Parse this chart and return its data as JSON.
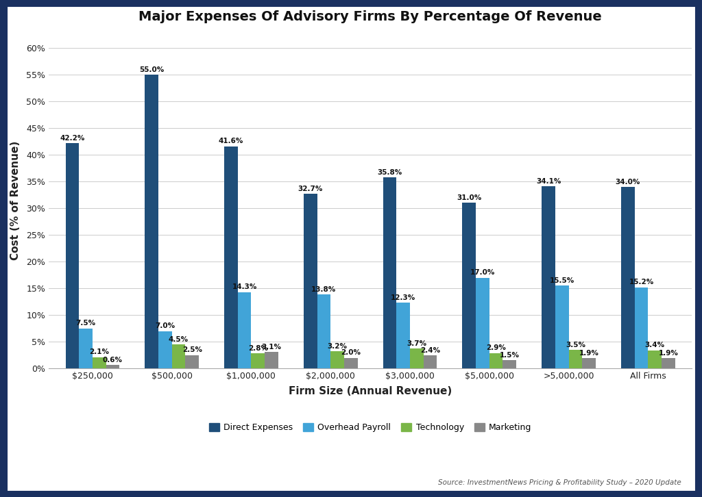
{
  "title": "Major Expenses Of Advisory Firms By Percentage Of Revenue",
  "xlabel": "Firm Size (Annual Revenue)",
  "ylabel": "Cost (% of Revenue)",
  "source": "Source: InvestmentNews Pricing & Profitability Study – 2020 Update",
  "categories": [
    "$250,000",
    "$500,000",
    "$1,000,000",
    "$2,000,000",
    "$3,000,000",
    "$5,000,000",
    ">5,000,000",
    "All Firms"
  ],
  "series": {
    "Direct Expenses": [
      42.2,
      55.0,
      41.6,
      32.7,
      35.8,
      31.0,
      34.1,
      34.0
    ],
    "Overhead Payroll": [
      7.5,
      7.0,
      14.3,
      13.8,
      12.3,
      17.0,
      15.5,
      15.2
    ],
    "Technology": [
      2.1,
      4.5,
      2.8,
      3.2,
      3.7,
      2.9,
      3.5,
      3.4
    ],
    "Marketing": [
      0.6,
      2.5,
      3.1,
      2.0,
      2.4,
      1.5,
      1.9,
      1.9
    ]
  },
  "colors": {
    "Direct Expenses": "#1f4e79",
    "Overhead Payroll": "#41a4d8",
    "Technology": "#7ab648",
    "Marketing": "#888888"
  },
  "ylim": [
    0,
    63
  ],
  "yticks": [
    0,
    5,
    10,
    15,
    20,
    25,
    30,
    35,
    40,
    45,
    50,
    55,
    60
  ],
  "bar_width": 0.17,
  "background_color": "#ffffff",
  "border_color": "#1a3060",
  "border_linewidth": 8,
  "title_fontsize": 14,
  "axis_label_fontsize": 11,
  "tick_fontsize": 9,
  "annotation_fontsize": 7.5,
  "legend_fontsize": 9,
  "source_fontsize": 7.5
}
